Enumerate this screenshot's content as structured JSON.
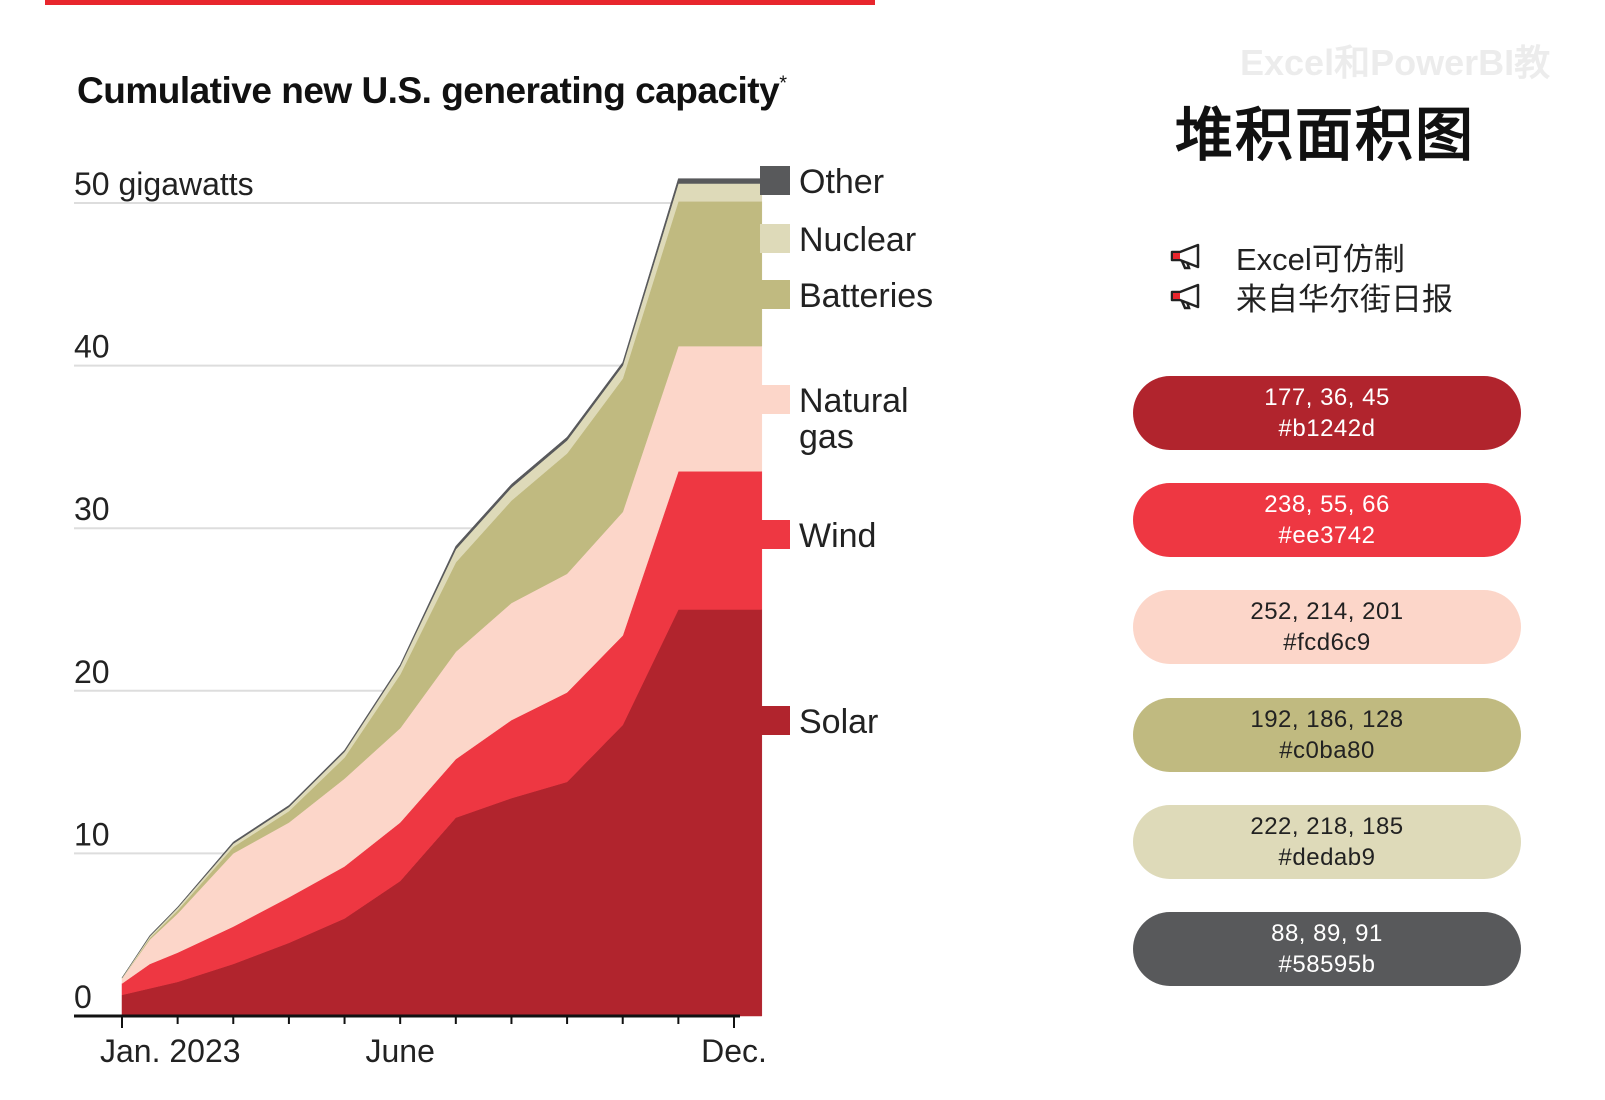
{
  "chart_data": {
    "type": "area",
    "stacked": true,
    "title": "Cumulative new U.S. generating capacity",
    "title_mark": "*",
    "y_unit_label": "50 gigawatts",
    "ylim": [
      0,
      50
    ],
    "yticks": [
      "0",
      "10",
      "20",
      "30",
      "40",
      "50 gigawatts"
    ],
    "ytick_values": [
      0,
      10,
      20,
      30,
      40,
      50
    ],
    "x_labels": [
      "Jan. 2023",
      "June",
      "Dec."
    ],
    "x_label_months": [
      1,
      6,
      12
    ],
    "x": [
      1,
      1.5,
      2,
      3,
      4,
      5,
      6,
      7,
      8,
      9,
      10,
      11,
      12,
      12.5
    ],
    "series": [
      {
        "name": "Solar",
        "color": "#b1242d",
        "values": [
          1.3,
          1.7,
          2.1,
          3.2,
          4.5,
          6.0,
          8.3,
          12.2,
          13.4,
          14.4,
          17.9,
          25.0,
          25.0,
          25.0
        ]
      },
      {
        "name": "Wind",
        "color": "#ee3742",
        "values": [
          0.7,
          1.5,
          1.8,
          2.3,
          2.8,
          3.2,
          3.6,
          3.6,
          4.8,
          5.5,
          5.5,
          8.5,
          8.5,
          8.5
        ]
      },
      {
        "name": "Natural gas",
        "color": "#fcd6c9",
        "values": [
          0.3,
          1.5,
          2.4,
          4.5,
          4.6,
          5.4,
          5.8,
          6.6,
          7.2,
          7.3,
          7.6,
          7.7,
          7.7,
          7.7
        ]
      },
      {
        "name": "Batteries",
        "color": "#c0ba80",
        "values": [
          0.0,
          0.1,
          0.2,
          0.4,
          0.7,
          1.3,
          3.3,
          5.5,
          6.3,
          7.4,
          8.2,
          8.9,
          8.9,
          8.9
        ]
      },
      {
        "name": "Nuclear",
        "color": "#dedab9",
        "values": [
          0.05,
          0.1,
          0.15,
          0.2,
          0.25,
          0.35,
          0.5,
          0.8,
          0.8,
          0.8,
          0.8,
          1.1,
          1.1,
          1.1
        ]
      },
      {
        "name": "Other",
        "color": "#58595b",
        "values": [
          0.0,
          0.05,
          0.05,
          0.1,
          0.1,
          0.1,
          0.1,
          0.2,
          0.2,
          0.2,
          0.2,
          0.3,
          0.3,
          0.3
        ]
      }
    ],
    "legend": [
      {
        "label": "Other",
        "color": "#58595b"
      },
      {
        "label": "Nuclear",
        "color": "#dedab9"
      },
      {
        "label": "Batteries",
        "color": "#c0ba80"
      },
      {
        "label": "Natural gas",
        "color": "#fcd6c9"
      },
      {
        "label": "Wind",
        "color": "#ee3742"
      },
      {
        "label": "Solar",
        "color": "#b1242d"
      }
    ],
    "legend_position": "right",
    "grid": true
  },
  "side": {
    "title": "堆积面积图",
    "watermark": "Excel和PowerBI教",
    "notes": [
      {
        "icon": "megaphone-icon",
        "text": "Excel可仿制"
      },
      {
        "icon": "megaphone-icon",
        "text": "来自华尔街日报"
      }
    ],
    "swatches": [
      {
        "rgb": "177, 36, 45",
        "hex": "#b1242d",
        "text_color": "#ffffff"
      },
      {
        "rgb": "238, 55, 66",
        "hex": "#ee3742",
        "text_color": "#ffffff"
      },
      {
        "rgb": "252, 214, 201",
        "hex": "#fcd6c9",
        "text_color": "#222222"
      },
      {
        "rgb": "192, 186, 128",
        "hex": "#c0ba80",
        "text_color": "#222222"
      },
      {
        "rgb": "222, 218, 185",
        "hex": "#dedab9",
        "text_color": "#222222"
      },
      {
        "rgb": "88, 89, 91",
        "hex": "#58595b",
        "text_color": "#ffffff"
      }
    ]
  }
}
